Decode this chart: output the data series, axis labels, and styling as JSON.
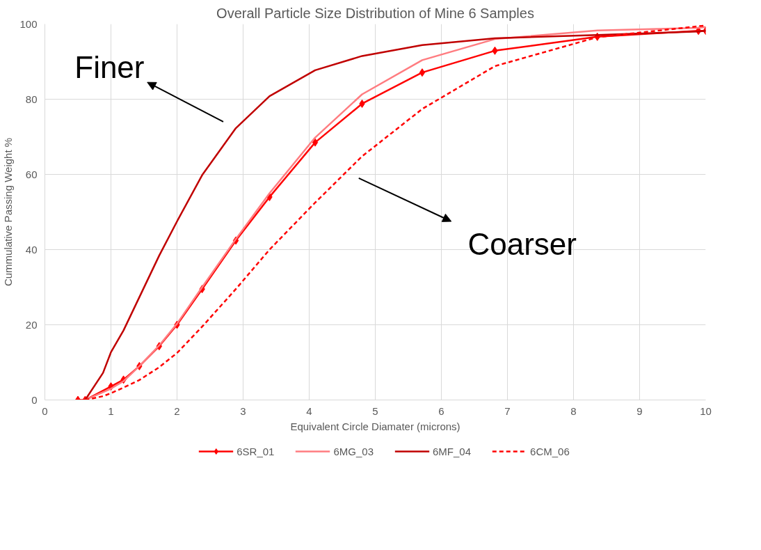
{
  "chart_data": {
    "type": "line",
    "title": "Overall Particle Size Distribution of Mine 6 Samples",
    "xlabel": "Equivalent Circle Diamater (microns)",
    "ylabel": "Cummulative Passing Weight %",
    "xlim": [
      0,
      10
    ],
    "xticks": [
      0,
      1,
      2,
      3,
      4,
      5,
      6,
      7,
      8,
      9,
      10
    ],
    "ylim": [
      0,
      100
    ],
    "yticks": [
      0,
      20,
      40,
      60,
      80,
      100
    ],
    "grid": true,
    "legend": "bottom",
    "annotations": [
      "Finer",
      "Coarser"
    ],
    "series": [
      {
        "name": "6SR_01",
        "color": "#ff0000",
        "marker": "diamond",
        "line_style": "solid",
        "x": [
          0.5,
          0.61,
          1.0,
          1.19,
          1.43,
          1.73,
          2.0,
          2.38,
          2.89,
          3.4,
          4.09,
          4.8,
          5.71,
          6.81,
          8.36,
          9.89,
          10
        ],
        "values": [
          0,
          0,
          3.6,
          5.4,
          9,
          14.3,
          20,
          29.5,
          42.4,
          54,
          68.5,
          78.8,
          87.1,
          92.9,
          96.6,
          98.2,
          98.2
        ]
      },
      {
        "name": "6MG_03",
        "color": "#ff7c80",
        "marker": "none",
        "line_style": "solid",
        "x": [
          0.61,
          1.0,
          1.19,
          1.43,
          1.73,
          2.0,
          2.38,
          2.89,
          3.4,
          4.09,
          4.8,
          5.71,
          6.81,
          8.36,
          9.89,
          10
        ],
        "values": [
          0,
          3.0,
          5.0,
          9,
          14.5,
          20.3,
          30,
          42.8,
          55,
          69.8,
          81.3,
          90.4,
          96,
          98.3,
          99,
          99.2
        ]
      },
      {
        "name": "6MF_04",
        "color": "#c00000",
        "marker": "none",
        "line_style": "solid",
        "x": [
          0.61,
          0.88,
          1.0,
          1.19,
          1.73,
          2.0,
          2.38,
          2.89,
          3.4,
          4.09,
          4.8,
          5.71,
          6.81,
          8.36,
          9.89,
          10
        ],
        "values": [
          0,
          7.2,
          12.7,
          18.5,
          38.4,
          47.5,
          59.8,
          72.3,
          80.8,
          87.7,
          91.5,
          94.4,
          96.2,
          97.1,
          98,
          98.2
        ]
      },
      {
        "name": "6CM_06",
        "color": "#ff0000",
        "marker": "none",
        "line_style": "dashed",
        "x": [
          0.61,
          0.88,
          1.0,
          1.19,
          1.43,
          1.73,
          2.0,
          2.38,
          2.89,
          3.4,
          4.09,
          4.8,
          5.71,
          6.81,
          8.36,
          9.89,
          10
        ],
        "values": [
          0,
          1,
          1.8,
          3.3,
          5.3,
          8.7,
          12.5,
          19.5,
          29.5,
          40,
          52.5,
          64.8,
          77.4,
          88.8,
          96.5,
          99.4,
          99.6
        ]
      }
    ]
  }
}
